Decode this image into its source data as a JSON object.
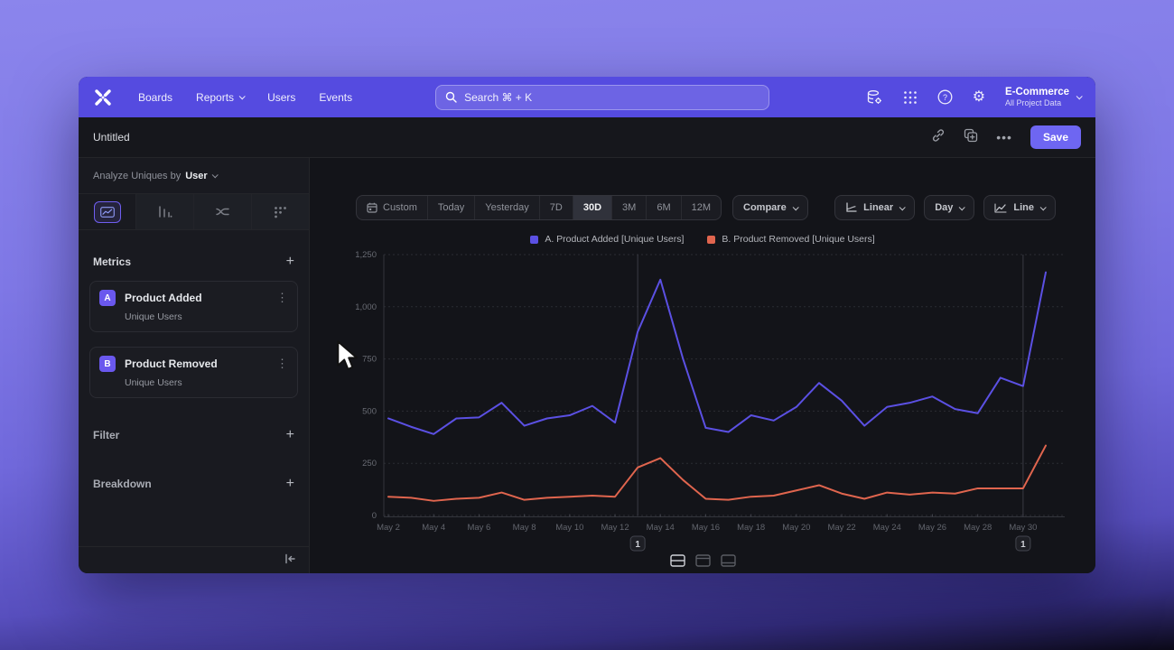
{
  "nav": {
    "items": [
      "Boards",
      "Reports",
      "Users",
      "Events"
    ],
    "search_placeholder": "Search  ⌘ + K",
    "project": {
      "name": "E-Commerce",
      "scope": "All Project Data"
    },
    "icons": [
      "mixpanel-logo",
      "search-icon",
      "data-management-icon",
      "apps-grid-icon",
      "help-icon",
      "settings-gear-icon",
      "chevron-down-icon"
    ]
  },
  "titlebar": {
    "title": "Untitled",
    "save_label": "Save",
    "icons": [
      "link-icon",
      "duplicate-icon",
      "more-ellipsis-icon"
    ]
  },
  "sidebar": {
    "analyze_prefix": "Analyze Uniques by",
    "analyze_value": "User",
    "tabs": [
      "insights-line-chart",
      "funnel-bars",
      "flows",
      "retention-dots"
    ],
    "selected_tab": 0,
    "metrics_label": "Metrics",
    "metrics": [
      {
        "badge": "A",
        "name": "Product Added",
        "sub": "Unique Users"
      },
      {
        "badge": "B",
        "name": "Product Removed",
        "sub": "Unique Users"
      }
    ],
    "filter_label": "Filter",
    "breakdown_label": "Breakdown",
    "add_symbol": "+",
    "collapse_icon": "collapse-left-icon"
  },
  "toolbar": {
    "ranges": [
      "Custom",
      "Today",
      "Yesterday",
      "7D",
      "30D",
      "3M",
      "6M",
      "12M"
    ],
    "selected_range": "30D",
    "compare_label": "Compare",
    "scale_label": "Linear",
    "interval_label": "Day",
    "charttype_label": "Line"
  },
  "layout_toggles": [
    "split-view",
    "chart-only-view",
    "table-only-view"
  ],
  "colors": {
    "accent": "#554be0",
    "series_a": "#5b50e3",
    "series_b": "#e0654e"
  },
  "chart_data": {
    "type": "line",
    "title": "",
    "x": [
      "May 2",
      "May 3",
      "May 4",
      "May 5",
      "May 6",
      "May 7",
      "May 8",
      "May 9",
      "May 10",
      "May 11",
      "May 12",
      "May 13",
      "May 14",
      "May 15",
      "May 16",
      "May 17",
      "May 18",
      "May 19",
      "May 20",
      "May 21",
      "May 22",
      "May 23",
      "May 24",
      "May 25",
      "May 26",
      "May 27",
      "May 28",
      "May 29",
      "May 30",
      "May 31"
    ],
    "xtick_every": 2,
    "series": [
      {
        "name": "A. Product Added [Unique Users]",
        "color": "#5b50e3",
        "values": [
          465,
          425,
          390,
          465,
          470,
          540,
          430,
          465,
          480,
          525,
          445,
          880,
          1130,
          750,
          420,
          400,
          480,
          455,
          520,
          635,
          550,
          430,
          520,
          540,
          570,
          510,
          490,
          660,
          620,
          1165
        ]
      },
      {
        "name": "B. Product Removed [Unique Users]",
        "color": "#e0654e",
        "values": [
          90,
          85,
          70,
          80,
          85,
          110,
          75,
          85,
          90,
          95,
          90,
          230,
          275,
          170,
          80,
          75,
          90,
          95,
          120,
          145,
          105,
          80,
          110,
          100,
          110,
          105,
          130,
          130,
          130,
          335
        ]
      }
    ],
    "ylim": [
      0,
      1250
    ],
    "yticks": [
      0,
      250,
      500,
      750,
      1000,
      1250
    ],
    "ytick_labels": [
      "0",
      "250",
      "500",
      "750",
      "1,000",
      "1,250"
    ],
    "annotations": [
      {
        "index": 11,
        "label": "1"
      },
      {
        "index": 28,
        "label": "1"
      }
    ],
    "grid": "horizontal-dashed",
    "legend_position": "top-center"
  }
}
